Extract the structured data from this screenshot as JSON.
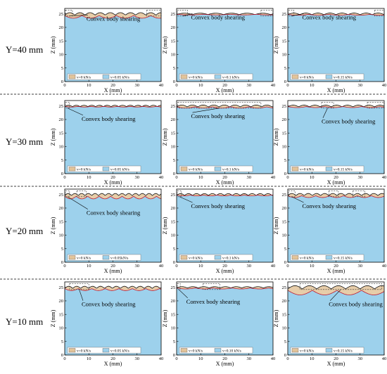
{
  "chart_data": {
    "type": "area",
    "rows": [
      {
        "label": "Y=40 mm"
      },
      {
        "label": "Y=30 mm"
      },
      {
        "label": "Y=20 mm"
      },
      {
        "label": "Y=10 mm"
      }
    ],
    "xlabel": "X (mm)",
    "ylabel": "Z (mm)",
    "xlim": [
      0,
      40
    ],
    "ylim": [
      0,
      27
    ],
    "xticks": [
      "0",
      "10",
      "20",
      "30",
      "40"
    ],
    "yticks": [
      "0",
      "5",
      "10",
      "15",
      "20",
      "25"
    ],
    "annotation": "Convex body shearing",
    "colors": {
      "bulk": "#9dd1ec",
      "sheared": "#e3c49a",
      "outline": "#c0182e",
      "dashed_box": "#333333"
    },
    "panels": [
      {
        "row": 0,
        "col": 0,
        "legend": [
          "v=0 kN/s",
          "v=0.05 kN/s"
        ],
        "amp": 0.9,
        "period": 4.2,
        "boxes": [
          [
            0.3,
            3.2
          ],
          [
            34,
            40
          ]
        ],
        "annot_x": 9,
        "annot_z": 22.5,
        "shear_amp": 1.6
      },
      {
        "row": 0,
        "col": 1,
        "legend": [
          "v=0 kN/s",
          "v=0.1 kN/s"
        ],
        "amp": 0.5,
        "period": 6.5,
        "boxes": [
          [
            0.3,
            4.5
          ],
          [
            35,
            40
          ]
        ],
        "annot_x": 6,
        "annot_z": 23,
        "shear_amp": 0.4
      },
      {
        "row": 0,
        "col": 2,
        "legend": [
          "v=0 kN/s",
          "v=0.15 kN/s"
        ],
        "amp": 0.6,
        "period": 5.0,
        "boxes": [
          [
            0.3,
            2.5
          ],
          [
            36,
            40
          ]
        ],
        "annot_x": 6,
        "annot_z": 23,
        "shear_amp": 0.5
      },
      {
        "row": 1,
        "col": 0,
        "legend": [
          "v=0 kN/s",
          "v=0.05 kN/s"
        ],
        "amp": 0.5,
        "period": 3.2,
        "boxes": [
          [
            0.3,
            2
          ]
        ],
        "annot_x": 7,
        "annot_z": 19.5,
        "shear_amp": 0.4
      },
      {
        "row": 1,
        "col": 1,
        "legend": [
          "v=0 kN/s",
          "v=0.1 kN/s"
        ],
        "amp": 0.7,
        "period": 4.4,
        "boxes": [
          [
            0.5,
            35
          ]
        ],
        "annot_x": 6,
        "annot_z": 20.5,
        "shear_amp": 0.8
      },
      {
        "row": 1,
        "col": 2,
        "legend": [
          "v=0 kN/s",
          "v=0.15 kN/s"
        ],
        "amp": 0.6,
        "period": 4.5,
        "boxes": [
          [
            14,
            19
          ],
          [
            33,
            40
          ]
        ],
        "annot_x": 14,
        "annot_z": 18.5,
        "shear_amp": 0.6
      },
      {
        "row": 2,
        "col": 0,
        "legend": [
          "v=0 kN/s",
          "v=0.05kN/s"
        ],
        "amp": 0.8,
        "period": 2.8,
        "boxes": [
          [
            0.3,
            2
          ],
          [
            5,
            9
          ]
        ],
        "annot_x": 9,
        "annot_z": 17.5,
        "shear_amp": 1.6
      },
      {
        "row": 2,
        "col": 1,
        "legend": [
          "v=0 kN/s",
          "v=0.1 kN/s"
        ],
        "amp": 0.7,
        "period": 3.3,
        "boxes": [
          [
            0.3,
            2
          ]
        ],
        "annot_x": 6,
        "annot_z": 20,
        "shear_amp": 0.5
      },
      {
        "row": 2,
        "col": 2,
        "legend": [
          "v=0 kN/s",
          "v=0.15 kN/s"
        ],
        "amp": 0.8,
        "period": 3.4,
        "boxes": [
          [
            0.3,
            3
          ],
          [
            17,
            21
          ],
          [
            27,
            32
          ]
        ],
        "annot_x": 6,
        "annot_z": 20,
        "shear_amp": 1.1
      },
      {
        "row": 3,
        "col": 0,
        "legend": [
          "v=0 kN/s",
          "v=0.05 kN/s"
        ],
        "amp": 0.8,
        "period": 3.3,
        "boxes": [
          [
            2,
            10
          ]
        ],
        "annot_x": 7,
        "annot_z": 18,
        "shear_amp": 1.2
      },
      {
        "row": 3,
        "col": 1,
        "legend": [
          "v=0 kN/s",
          "v=0.10 kN/s"
        ],
        "amp": 0.5,
        "period": 4.5,
        "boxes": [
          [
            0.3,
            1.5
          ],
          [
            11,
            18
          ]
        ],
        "annot_x": 4,
        "annot_z": 19,
        "shear_amp": 0.6
      },
      {
        "row": 3,
        "col": 2,
        "legend": [
          "v=0 kN/s",
          "v=0.15 kN/s"
        ],
        "amp": 1.2,
        "period": 6.0,
        "boxes": [
          [
            5,
            39
          ]
        ],
        "annot_x": 17,
        "annot_z": 18,
        "shear_amp": 2.8
      }
    ]
  }
}
